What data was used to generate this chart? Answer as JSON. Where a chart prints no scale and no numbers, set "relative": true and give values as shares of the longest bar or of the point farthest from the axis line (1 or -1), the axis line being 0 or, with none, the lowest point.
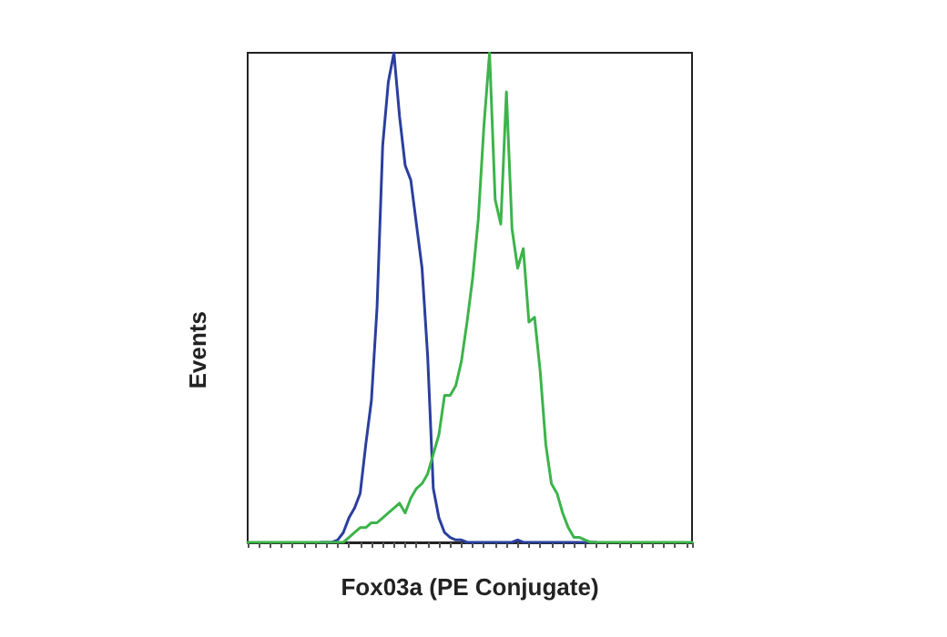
{
  "chart_data": {
    "type": "line",
    "relative": true,
    "xlabel": "Fox03a (PE Conjugate)",
    "ylabel": "Events",
    "grid": false,
    "line_style": "solid",
    "categories": [
      null,
      null,
      null,
      null,
      null,
      null,
      null,
      null,
      null,
      null,
      null,
      null,
      null,
      null,
      null,
      null,
      null,
      null,
      null,
      null,
      null,
      null,
      null,
      null,
      null,
      null,
      null,
      null,
      null,
      null,
      null,
      null,
      null,
      null,
      null,
      null,
      null,
      null,
      null,
      null,
      null,
      null,
      null,
      null,
      null,
      null,
      null,
      null,
      null,
      null,
      null,
      null,
      null,
      null,
      null,
      null,
      null,
      null,
      null,
      null,
      null,
      null,
      null,
      null,
      null,
      null,
      null,
      null,
      null,
      null,
      null,
      null,
      null,
      null,
      null,
      null,
      null,
      null,
      null,
      null
    ],
    "series": [
      {
        "color": "#2b3f9e",
        "values": [
          null,
          null,
          null,
          null,
          null,
          null,
          null,
          null,
          null,
          null,
          null,
          null,
          null,
          0,
          0,
          0,
          0.005,
          0.02,
          0.05,
          0.07,
          0.1,
          0.2,
          0.29,
          0.48,
          0.81,
          0.94,
          1,
          0.87,
          0.77,
          0.74,
          0.65,
          0.56,
          0.38,
          0.11,
          0.05,
          0.02,
          0.01,
          0.005,
          0.005,
          0,
          0,
          0,
          0,
          0,
          0,
          0,
          0,
          0,
          0.005,
          0,
          0,
          0,
          0,
          0,
          0,
          0,
          0,
          0,
          0,
          0,
          0,
          0,
          0,
          null,
          null,
          null,
          null,
          null,
          null,
          null,
          null,
          null,
          null,
          null,
          null,
          null,
          null,
          null,
          null,
          null
        ]
      },
      {
        "color": "#3cb44a",
        "values": [
          0,
          0,
          0,
          0,
          0,
          0,
          0,
          0,
          0,
          0,
          0,
          0,
          0,
          0,
          0,
          0,
          0,
          0,
          0.01,
          0.02,
          0.03,
          0.03,
          0.04,
          0.04,
          0.05,
          0.06,
          0.07,
          0.08,
          0.06,
          0.09,
          0.11,
          0.12,
          0.14,
          0.18,
          0.22,
          0.3,
          0.3,
          0.32,
          0.37,
          0.45,
          0.54,
          0.66,
          0.85,
          1,
          0.7,
          0.65,
          0.92,
          0.64,
          0.56,
          0.6,
          0.45,
          0.46,
          0.35,
          0.2,
          0.12,
          0.1,
          0.06,
          0.03,
          0.01,
          0.01,
          0.005,
          0,
          0,
          0,
          0,
          0,
          0,
          0,
          0,
          0,
          0,
          0,
          0,
          0,
          0,
          0,
          0,
          0,
          0,
          0
        ]
      }
    ]
  }
}
